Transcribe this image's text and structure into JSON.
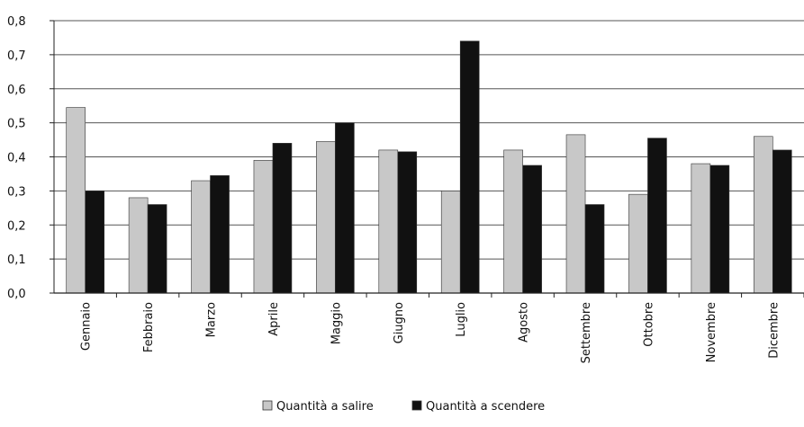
{
  "chart_data": {
    "type": "bar",
    "title": "",
    "xlabel": "",
    "ylabel": "",
    "ylim": [
      0,
      0.8
    ],
    "yticks": [
      "0,0",
      "0,1",
      "0,2",
      "0,3",
      "0,4",
      "0,5",
      "0,6",
      "0,7",
      "0,8"
    ],
    "grid": true,
    "legend_position": "bottom",
    "categories": [
      "Gennaio",
      "Febbraio",
      "Marzo",
      "Aprile",
      "Maggio",
      "Giugno",
      "Luglio",
      "Agosto",
      "Settembre",
      "Ottobre",
      "Novembre",
      "Dicembre"
    ],
    "series": [
      {
        "name": "Quantità a salire",
        "color": "#c8c8c8",
        "values": [
          0.545,
          0.28,
          0.33,
          0.39,
          0.445,
          0.42,
          0.3,
          0.42,
          0.465,
          0.29,
          0.38,
          0.46
        ]
      },
      {
        "name": "Quantità a scendere",
        "color": "#111111",
        "values": [
          0.3,
          0.26,
          0.345,
          0.44,
          0.5,
          0.415,
          0.74,
          0.375,
          0.26,
          0.455,
          0.375,
          0.42
        ]
      }
    ]
  }
}
